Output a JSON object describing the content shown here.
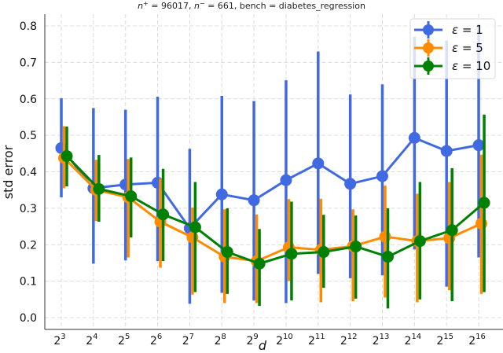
{
  "chart_data": {
    "type": "line",
    "title": "n⁺ = 96017, n⁻ = 661, bench = diabetes_regression",
    "title_parts": {
      "n_plus": "96017",
      "n_minus": "661",
      "bench": "diabetes_regression"
    },
    "xlabel": "d",
    "ylabel": "std error",
    "x": [
      "2^3",
      "2^4",
      "2^5",
      "2^6",
      "2^7",
      "2^8",
      "2^9",
      "2^10",
      "2^11",
      "2^12",
      "2^13",
      "2^14",
      "2^15",
      "2^16"
    ],
    "x_exponents": [
      3,
      4,
      5,
      6,
      7,
      8,
      9,
      10,
      11,
      12,
      13,
      14,
      15,
      16
    ],
    "ylim": [
      0.0,
      0.8
    ],
    "yticks": [
      "0.0",
      "0.1",
      "0.2",
      "0.3",
      "0.4",
      "0.5",
      "0.6",
      "0.7",
      "0.8"
    ],
    "grid": true,
    "legend_position": "upper right",
    "series": [
      {
        "name": "ε = 1",
        "label_value": "1",
        "color": "#4169e1",
        "values": [
          0.465,
          0.355,
          0.365,
          0.37,
          0.245,
          0.338,
          0.322,
          0.377,
          0.423,
          0.367,
          0.388,
          0.493,
          0.457,
          0.473
        ],
        "err_low": [
          0.33,
          0.148,
          0.157,
          0.155,
          0.038,
          0.068,
          0.047,
          0.04,
          0.12,
          0.108,
          0.116,
          0.187,
          0.085,
          0.165
        ],
        "err_high": [
          0.602,
          0.575,
          0.57,
          0.606,
          0.463,
          0.608,
          0.594,
          0.651,
          0.73,
          0.612,
          0.64,
          0.77,
          0.76,
          0.805
        ]
      },
      {
        "name": "ε = 5",
        "label_value": "5",
        "color": "#ff8c00",
        "values": [
          0.438,
          0.35,
          0.33,
          0.263,
          0.22,
          0.167,
          0.155,
          0.193,
          0.186,
          0.196,
          0.222,
          0.21,
          0.218,
          0.258
        ],
        "err_low": [
          0.355,
          0.265,
          0.165,
          0.137,
          0.063,
          0.04,
          0.04,
          0.1,
          0.042,
          0.045,
          0.055,
          0.042,
          0.075,
          0.065
        ],
        "err_high": [
          0.525,
          0.433,
          0.435,
          0.382,
          0.302,
          0.297,
          0.283,
          0.325,
          0.326,
          0.297,
          0.362,
          0.34,
          0.372,
          0.447
        ]
      },
      {
        "name": "ε = 10",
        "label_value": "10",
        "color": "#008000",
        "values": [
          0.443,
          0.353,
          0.333,
          0.283,
          0.248,
          0.18,
          0.148,
          0.175,
          0.18,
          0.195,
          0.167,
          0.21,
          0.24,
          0.315
        ],
        "err_low": [
          0.36,
          0.263,
          0.22,
          0.155,
          0.07,
          0.065,
          0.032,
          0.047,
          0.082,
          0.052,
          0.025,
          0.05,
          0.045,
          0.07
        ],
        "err_high": [
          0.524,
          0.446,
          0.439,
          0.408,
          0.372,
          0.3,
          0.243,
          0.318,
          0.282,
          0.28,
          0.3,
          0.372,
          0.41,
          0.557
        ]
      }
    ]
  }
}
